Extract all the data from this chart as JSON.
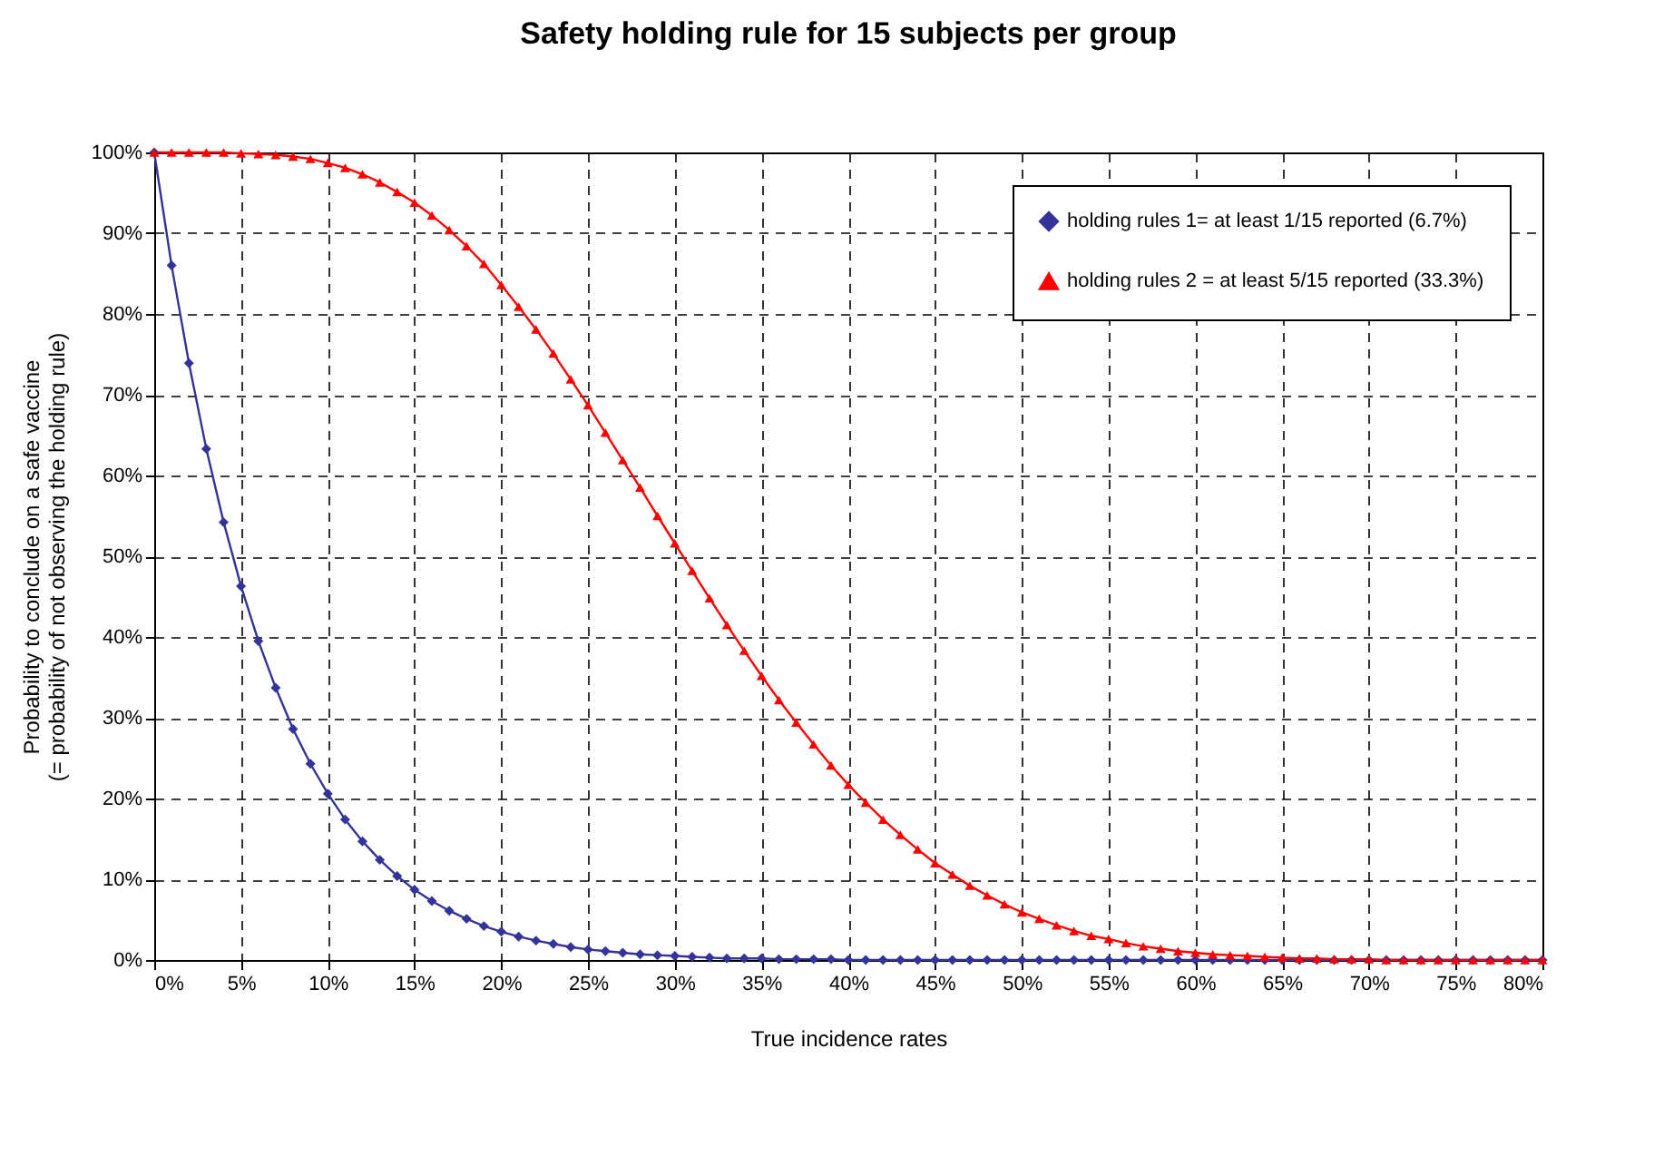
{
  "chart_data": {
    "type": "line",
    "title": "Safety holding rule for 15 subjects per group",
    "xlabel": "True incidence rates",
    "ylabel": "Probability to conclude on a safe vaccine\n(= probability of not observing the holding rule)",
    "x": [
      0,
      1,
      2,
      3,
      4,
      5,
      6,
      7,
      8,
      9,
      10,
      11,
      12,
      13,
      14,
      15,
      16,
      17,
      18,
      19,
      20,
      21,
      22,
      23,
      24,
      25,
      26,
      27,
      28,
      29,
      30,
      31,
      32,
      33,
      34,
      35,
      36,
      37,
      38,
      39,
      40,
      41,
      42,
      43,
      44,
      45,
      46,
      47,
      48,
      49,
      50,
      51,
      52,
      53,
      54,
      55,
      56,
      57,
      58,
      59,
      60,
      61,
      62,
      63,
      64,
      65,
      66,
      67,
      68,
      69,
      70,
      71,
      72,
      73,
      74,
      75,
      76,
      77,
      78,
      79,
      80
    ],
    "series": [
      {
        "name": "holding rules 1= at least 1/15 reported (6.7%)",
        "color": "#333399",
        "marker": "diamond",
        "values": [
          100,
          86.0,
          73.9,
          63.3,
          54.2,
          46.3,
          39.5,
          33.7,
          28.6,
          24.3,
          20.6,
          17.4,
          14.7,
          12.4,
          10.4,
          8.7,
          7.3,
          6.1,
          5.1,
          4.2,
          3.5,
          2.9,
          2.4,
          2.0,
          1.6,
          1.3,
          1.1,
          0.9,
          0.7,
          0.6,
          0.5,
          0.4,
          0.3,
          0.2,
          0.2,
          0.2,
          0.1,
          0.1,
          0.1,
          0.1,
          0,
          0,
          0,
          0,
          0,
          0,
          0,
          0,
          0,
          0,
          0,
          0,
          0,
          0,
          0,
          0,
          0,
          0,
          0,
          0,
          0,
          0,
          0,
          0,
          0,
          0,
          0,
          0,
          0,
          0,
          0,
          0,
          0,
          0,
          0,
          0,
          0,
          0,
          0,
          0,
          0
        ]
      },
      {
        "name": "holding rules 2 = at least 5/15 reported (33.3%)",
        "color": "#ff0000",
        "marker": "triangle",
        "values": [
          100,
          100,
          100,
          100,
          100,
          99.9,
          99.8,
          99.7,
          99.5,
          99.2,
          98.7,
          98.1,
          97.3,
          96.3,
          95.1,
          93.8,
          92.2,
          90.4,
          88.4,
          86.2,
          83.6,
          80.9,
          78.1,
          75.1,
          71.9,
          68.7,
          65.3,
          61.9,
          58.5,
          55.0,
          51.6,
          48.2,
          44.8,
          41.5,
          38.3,
          35.2,
          32.2,
          29.4,
          26.7,
          24.1,
          21.7,
          19.5,
          17.4,
          15.5,
          13.7,
          12.0,
          10.6,
          9.2,
          8.0,
          6.9,
          5.9,
          5.1,
          4.3,
          3.6,
          3.0,
          2.6,
          2.1,
          1.7,
          1.4,
          1.1,
          0.9,
          0.7,
          0.6,
          0.5,
          0.4,
          0.3,
          0.2,
          0.2,
          0.1,
          0.1,
          0.1,
          0,
          0,
          0,
          0,
          0,
          0,
          0,
          0,
          0,
          0
        ]
      }
    ],
    "xlim": [
      0,
      80
    ],
    "xticks": [
      {
        "value": 0,
        "label": "0%"
      },
      {
        "value": 5,
        "label": "5%"
      },
      {
        "value": 10,
        "label": "10%"
      },
      {
        "value": 15,
        "label": "15%"
      },
      {
        "value": 20,
        "label": "20%"
      },
      {
        "value": 25,
        "label": "25%"
      },
      {
        "value": 30,
        "label": "30%"
      },
      {
        "value": 35,
        "label": "35%"
      },
      {
        "value": 40,
        "label": "40%"
      },
      {
        "value": 45,
        "label": "45%"
      },
      {
        "value": 50,
        "label": "50%"
      },
      {
        "value": 55,
        "label": "55%"
      },
      {
        "value": 60,
        "label": "60%"
      },
      {
        "value": 65,
        "label": "65%"
      },
      {
        "value": 70,
        "label": "70%"
      },
      {
        "value": 75,
        "label": "75%"
      },
      {
        "value": 80,
        "label": "80%"
      }
    ],
    "ylim": [
      0,
      100
    ],
    "yticks": [
      {
        "value": 0,
        "label": "0%"
      },
      {
        "value": 10,
        "label": "10%"
      },
      {
        "value": 20,
        "label": "20%"
      },
      {
        "value": 30,
        "label": "30%"
      },
      {
        "value": 40,
        "label": "40%"
      },
      {
        "value": 50,
        "label": "50%"
      },
      {
        "value": 60,
        "label": "60%"
      },
      {
        "value": 70,
        "label": "70%"
      },
      {
        "value": 80,
        "label": "80%"
      },
      {
        "value": 90,
        "label": "90%"
      },
      {
        "value": 100,
        "label": "100%"
      }
    ],
    "grid": true,
    "legend": "top right",
    "line_style": "solid"
  }
}
